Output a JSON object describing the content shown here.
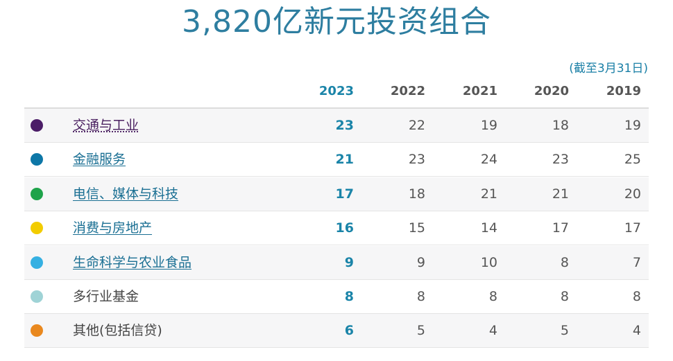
{
  "title": "3,820亿新元投资组合",
  "as_of": "(截至3月31日)",
  "chart_data": {
    "type": "table",
    "columns": [
      "2023",
      "2022",
      "2021",
      "2020",
      "2019"
    ],
    "rows": [
      {
        "label": "交通与工业",
        "color": "#4b1d67",
        "link": true,
        "values": [
          23,
          22,
          19,
          18,
          19
        ]
      },
      {
        "label": "金融服务",
        "color": "#0d77a7",
        "link": true,
        "values": [
          21,
          23,
          24,
          23,
          25
        ]
      },
      {
        "label": "电信、媒体与科技",
        "color": "#1ea34a",
        "link": true,
        "values": [
          17,
          18,
          21,
          21,
          20
        ]
      },
      {
        "label": "消费与房地产",
        "color": "#f2cc00",
        "link": true,
        "values": [
          16,
          15,
          14,
          17,
          17
        ]
      },
      {
        "label": "生命科学与农业食品",
        "color": "#35b0e2",
        "link": true,
        "values": [
          9,
          9,
          10,
          8,
          7
        ]
      },
      {
        "label": "多行业基金",
        "color": "#9fd3d6",
        "link": false,
        "values": [
          8,
          8,
          8,
          8,
          8
        ]
      },
      {
        "label": "其他(包括信贷)",
        "color": "#e9881e",
        "link": false,
        "values": [
          6,
          5,
          4,
          5,
          4
        ]
      }
    ]
  }
}
